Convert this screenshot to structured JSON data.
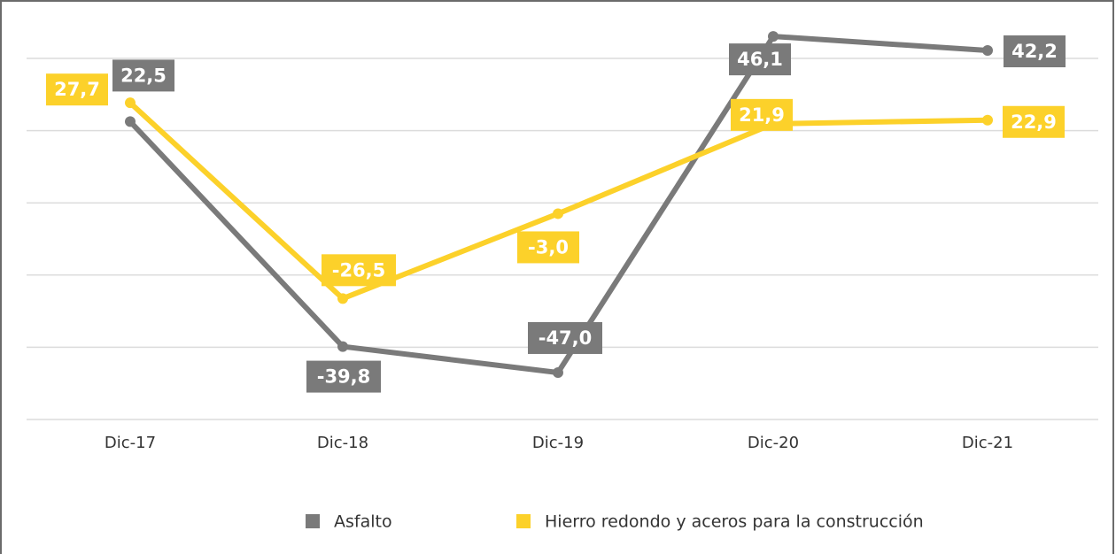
{
  "chart_data": {
    "type": "line",
    "categories": [
      "Dic-17",
      "Dic-18",
      "Dic-19",
      "Dic-20",
      "Dic-21"
    ],
    "series": [
      {
        "name": "Asfalto",
        "color": "#7a7a7a",
        "values": [
          22.5,
          -39.8,
          -47.0,
          46.1,
          42.2
        ],
        "value_labels": [
          "22,5",
          "-39,8",
          "-47,0",
          "46,1",
          "42,2"
        ]
      },
      {
        "name": "Hierro redondo y aceros para la construcción",
        "color": "#fcd12a",
        "values": [
          27.7,
          -26.5,
          -3.0,
          21.9,
          22.9
        ],
        "value_labels": [
          "27,7",
          "-26,5",
          "-3,0",
          "21,9",
          "22,9"
        ]
      }
    ],
    "ylim": [
      -60,
      50
    ],
    "yticks": [
      -60,
      -40,
      -20,
      0,
      20,
      40
    ],
    "grid": true,
    "legend": "bottom"
  }
}
